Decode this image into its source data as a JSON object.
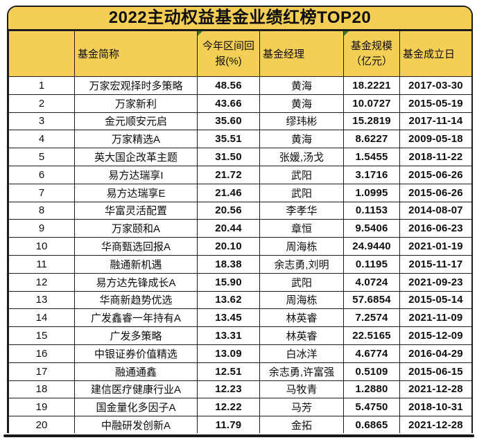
{
  "chart_data": {
    "type": "table",
    "title": "2022主动权益基金业绩红榜TOP20",
    "columns": [
      "",
      "基金简称",
      "今年区间回报(%)",
      "基金经理",
      "基金规模（亿元）",
      "基金成立日"
    ],
    "rows": [
      [
        "1",
        "万家宏观择时多策略",
        "48.56",
        "黄海",
        "18.2221",
        "2017-03-30"
      ],
      [
        "2",
        "万家新利",
        "43.66",
        "黄海",
        "10.0727",
        "2015-05-19"
      ],
      [
        "3",
        "金元顺安元启",
        "35.60",
        "缪玮彬",
        "15.2819",
        "2017-11-14"
      ],
      [
        "4",
        "万家精选A",
        "35.51",
        "黄海",
        "8.6227",
        "2009-05-18"
      ],
      [
        "5",
        "英大国企改革主题",
        "31.50",
        "张媛,汤戈",
        "1.5455",
        "2018-11-22"
      ],
      [
        "6",
        "易方达瑞享I",
        "21.72",
        "武阳",
        "3.1716",
        "2015-06-26"
      ],
      [
        "7",
        "易方达瑞享E",
        "21.46",
        "武阳",
        "1.0995",
        "2015-06-26"
      ],
      [
        "8",
        "华富灵活配置",
        "20.56",
        "李孝华",
        "0.1153",
        "2014-08-07"
      ],
      [
        "9",
        "万家颐和A",
        "20.44",
        "章恒",
        "9.5406",
        "2016-06-23"
      ],
      [
        "10",
        "华商甄选回报A",
        "20.10",
        "周海栋",
        "24.9440",
        "2021-01-19"
      ],
      [
        "11",
        "融通新机遇",
        "18.38",
        "余志勇,刘明",
        "0.1195",
        "2015-11-17"
      ],
      [
        "12",
        "易方达先锋成长A",
        "15.90",
        "武阳",
        "4.0724",
        "2021-09-23"
      ],
      [
        "13",
        "华商新趋势优选",
        "13.62",
        "周海栋",
        "57.6854",
        "2015-05-14"
      ],
      [
        "14",
        "广发鑫睿一年持有A",
        "13.45",
        "林英睿",
        "7.2574",
        "2021-11-09"
      ],
      [
        "15",
        "广发多策略",
        "13.31",
        "林英睿",
        "22.5165",
        "2015-12-09"
      ],
      [
        "16",
        "中银证券价值精选",
        "13.09",
        "白冰洋",
        "4.6774",
        "2016-04-29"
      ],
      [
        "17",
        "融通通鑫",
        "12.51",
        "余志勇,许富强",
        "0.5109",
        "2015-06-15"
      ],
      [
        "18",
        "建信医疗健康行业A",
        "12.23",
        "马牧青",
        "1.2880",
        "2021-12-28"
      ],
      [
        "19",
        "国金量化多因子A",
        "12.22",
        "马芳",
        "5.4750",
        "2018-10-31"
      ],
      [
        "20",
        "中融研发创新A",
        "11.79",
        "金拓",
        "0.6865",
        "2021-12-28"
      ]
    ]
  },
  "header": {
    "labels": {
      "rank": "",
      "name": "基金简称",
      "return": "今年区间回\n报(%)",
      "manager": "基金经理",
      "size": "基金规模\n（亿元）",
      "date": "基金成立日"
    }
  },
  "colors": {
    "header_background": "#f5ce55",
    "grid_border": "#1c1c1c",
    "text": "#0d0d0d",
    "green_corner_marker": "#3e7b2a"
  }
}
